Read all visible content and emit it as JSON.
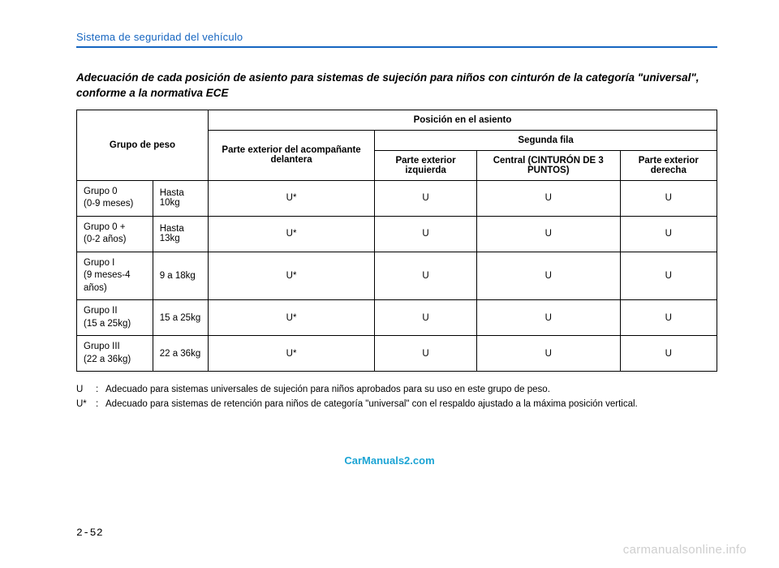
{
  "header": {
    "section": "Sistema de seguridad del vehículo"
  },
  "subtitle": "Adecuación de cada posición de asiento para sistemas de sujeción para niños con cinturón de la categoría \"universal\", conforme a la normativa ECE",
  "table": {
    "col_group_header": "Grupo de peso",
    "col_position_header": "Posición en el asiento",
    "col_front": "Parte exterior del acompañante delantera",
    "col_second_row": "Segunda fila",
    "col_left": "Parte exterior izquierda",
    "col_center": "Central (CINTURÓN DE 3 PUNTOS)",
    "col_right": "Parte exterior derecha",
    "rows": [
      {
        "group": "Grupo 0",
        "detail": "(0-9 meses)",
        "weight": "Hasta 10kg",
        "front": "U*",
        "left": "U",
        "center": "U",
        "right": "U"
      },
      {
        "group": "Grupo 0 +",
        "detail": "(0-2 años)",
        "weight": "Hasta 13kg",
        "front": "U*",
        "left": "U",
        "center": "U",
        "right": "U"
      },
      {
        "group": "Grupo I",
        "detail": "(9 meses-4 años)",
        "weight": "9 a 18kg",
        "front": "U*",
        "left": "U",
        "center": "U",
        "right": "U"
      },
      {
        "group": "Grupo II",
        "detail": "(15 a 25kg)",
        "weight": "15 a 25kg",
        "front": "U*",
        "left": "U",
        "center": "U",
        "right": "U"
      },
      {
        "group": "Grupo III",
        "detail": "(22 a 36kg)",
        "weight": "22 a 36kg",
        "front": "U*",
        "left": "U",
        "center": "U",
        "right": "U"
      }
    ]
  },
  "footnotes": [
    {
      "key": "U",
      "text": "Adecuado para sistemas universales de sujeción para niños aprobados para su uso en este grupo de peso."
    },
    {
      "key": "U*",
      "text": "Adecuado para sistemas de retención para niños de categoría \"universal\" con el respaldo ajustado a la máxima posición vertical."
    }
  ],
  "watermark1": "CarManuals2.com",
  "watermark2": "carmanualsonline.info",
  "page_number": "2-52"
}
